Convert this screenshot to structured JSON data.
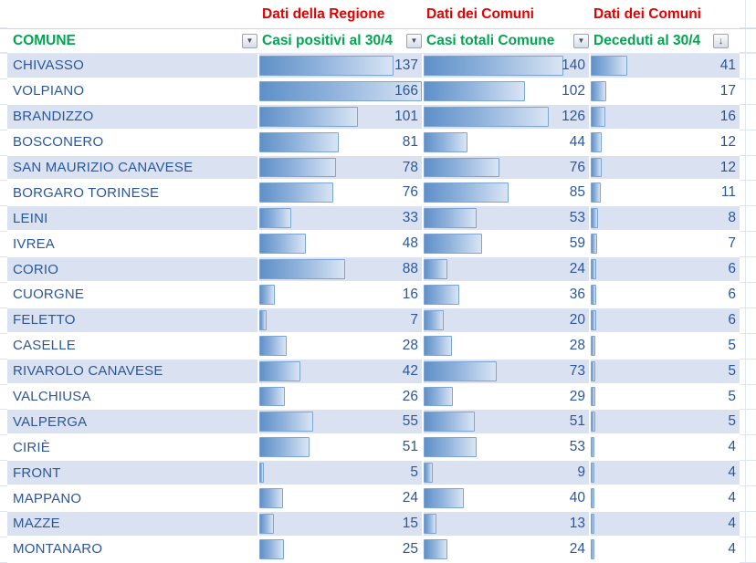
{
  "header_groups": [
    {
      "label": "Dati della Regione"
    },
    {
      "label": "Dati dei Comuni"
    },
    {
      "label": "Dati dei Comuni"
    }
  ],
  "columns": [
    {
      "key": "comune",
      "label": "COMUNE",
      "filter_icon": "dropdown-arrow",
      "filter_glyph": "▼"
    },
    {
      "key": "casi_regione",
      "label": "Casi positivi al 30/4",
      "filter_icon": "dropdown-arrow",
      "filter_glyph": "▼"
    },
    {
      "key": "casi_comune",
      "label": "Casi totali Comune",
      "filter_icon": "dropdown-arrow",
      "filter_glyph": "▼"
    },
    {
      "key": "deceduti",
      "label": "Deceduti al 30/4",
      "filter_icon": "sort-descending-arrow",
      "filter_glyph": "↓"
    }
  ],
  "bar_scale_max": 166,
  "rows": [
    {
      "comune": "CHIVASSO",
      "casi_regione": 137,
      "casi_comune": 140,
      "deceduti": 41
    },
    {
      "comune": "VOLPIANO",
      "casi_regione": 166,
      "casi_comune": 102,
      "deceduti": 17
    },
    {
      "comune": "BRANDIZZO",
      "casi_regione": 101,
      "casi_comune": 126,
      "deceduti": 16
    },
    {
      "comune": "BOSCONERO",
      "casi_regione": 81,
      "casi_comune": 44,
      "deceduti": 12
    },
    {
      "comune": "SAN MAURIZIO CANAVESE",
      "casi_regione": 78,
      "casi_comune": 76,
      "deceduti": 12
    },
    {
      "comune": "BORGARO TORINESE",
      "casi_regione": 76,
      "casi_comune": 85,
      "deceduti": 11
    },
    {
      "comune": "LEINI",
      "casi_regione": 33,
      "casi_comune": 53,
      "deceduti": 8
    },
    {
      "comune": "IVREA",
      "casi_regione": 48,
      "casi_comune": 59,
      "deceduti": 7
    },
    {
      "comune": "CORIO",
      "casi_regione": 88,
      "casi_comune": 24,
      "deceduti": 6
    },
    {
      "comune": "CUORGNE",
      "casi_regione": 16,
      "casi_comune": 36,
      "deceduti": 6
    },
    {
      "comune": "FELETTO",
      "casi_regione": 7,
      "casi_comune": 20,
      "deceduti": 6
    },
    {
      "comune": "CASELLE",
      "casi_regione": 28,
      "casi_comune": 28,
      "deceduti": 5
    },
    {
      "comune": "RIVAROLO CANAVESE",
      "casi_regione": 42,
      "casi_comune": 73,
      "deceduti": 5
    },
    {
      "comune": "VALCHIUSA",
      "casi_regione": 26,
      "casi_comune": 29,
      "deceduti": 5
    },
    {
      "comune": "VALPERGA",
      "casi_regione": 55,
      "casi_comune": 51,
      "deceduti": 5
    },
    {
      "comune": "CIRIÈ",
      "casi_regione": 51,
      "casi_comune": 53,
      "deceduti": 4
    },
    {
      "comune": "FRONT",
      "casi_regione": 5,
      "casi_comune": 9,
      "deceduti": 4
    },
    {
      "comune": "MAPPANO",
      "casi_regione": 24,
      "casi_comune": 40,
      "deceduti": 4
    },
    {
      "comune": "MAZZE",
      "casi_regione": 15,
      "casi_comune": 13,
      "deceduti": 4
    },
    {
      "comune": "MONTANARO",
      "casi_regione": 25,
      "casi_comune": 24,
      "deceduti": 4
    }
  ],
  "colors": {
    "group_header_red": "#E60000",
    "column_header_green": "#00A651",
    "cell_text_navy": "#2B579A",
    "band_row_bg": "#DAE2F2",
    "bar_fill_start": "#5F90C8",
    "bar_fill_end": "#D9E5F4",
    "bar_border": "#7EA4D2",
    "gridline": "#DEE5F0"
  }
}
